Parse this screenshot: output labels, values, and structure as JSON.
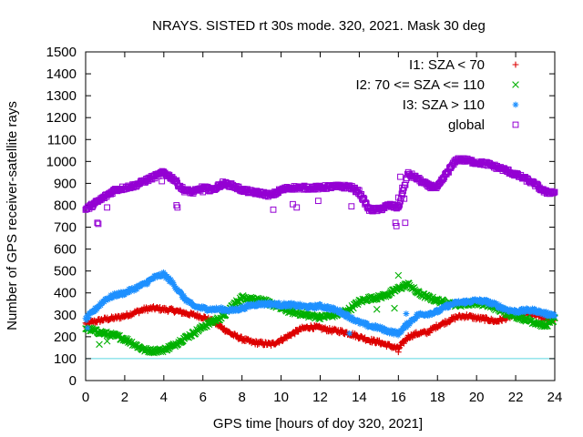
{
  "chart_data": {
    "type": "scatter",
    "title": "NRAYS. SISTED rt 30s mode. 320, 2021. Mask 30 deg",
    "xlabel": "GPS time [hours of doy 320, 2021]",
    "ylabel": "Number of GPS receiver-satellite rays",
    "xlim": [
      0,
      24
    ],
    "ylim": [
      0,
      1500
    ],
    "xticks": [
      0,
      2,
      4,
      6,
      8,
      10,
      12,
      14,
      16,
      18,
      20,
      22,
      24
    ],
    "yticks": [
      0,
      100,
      200,
      300,
      400,
      500,
      600,
      700,
      800,
      900,
      1000,
      1100,
      1200,
      1300,
      1400,
      1500
    ],
    "reference_line": {
      "y": 100,
      "color": "#5ad8e0"
    },
    "legend_position": "top-right",
    "series": [
      {
        "name": "I1: SZA < 70",
        "marker": "+",
        "color": "#dd0000",
        "x": [
          0,
          0.5,
          1,
          1.5,
          2,
          2.5,
          3,
          3.5,
          4,
          4.5,
          5,
          5.5,
          6,
          6.5,
          7,
          7.5,
          8,
          8.5,
          9,
          9.5,
          10,
          10.5,
          11,
          11.5,
          12,
          12.5,
          13,
          13.5,
          14,
          14.5,
          15,
          15.5,
          16,
          16.5,
          17,
          17.5,
          18,
          18.5,
          19,
          19.5,
          20,
          20.5,
          21,
          21.5,
          22,
          22.5,
          23,
          23.5,
          24
        ],
        "values": [
          260,
          270,
          280,
          285,
          295,
          310,
          325,
          330,
          325,
          320,
          310,
          300,
          290,
          270,
          240,
          210,
          190,
          175,
          170,
          165,
          185,
          210,
          235,
          245,
          240,
          230,
          225,
          215,
          200,
          185,
          175,
          160,
          145,
          200,
          215,
          220,
          250,
          270,
          290,
          295,
          285,
          280,
          270,
          285,
          300,
          305,
          300,
          285,
          270
        ]
      },
      {
        "name": "I2: 70 <= SZA <= 110",
        "marker": "x",
        "color": "#00b000",
        "x": [
          0,
          0.5,
          1,
          1.5,
          2,
          2.5,
          3,
          3.5,
          4,
          4.5,
          5,
          5.5,
          6,
          6.5,
          7,
          7.5,
          8,
          8.5,
          9,
          9.5,
          10,
          10.5,
          11,
          11.5,
          12,
          12.5,
          13,
          13.5,
          14,
          14.5,
          15,
          15.5,
          16,
          16.5,
          17,
          17.5,
          18,
          18.5,
          19,
          19.5,
          20,
          20.5,
          21,
          21.5,
          22,
          22.5,
          23,
          23.5,
          24
        ],
        "values": [
          240,
          225,
          215,
          205,
          190,
          165,
          140,
          135,
          140,
          160,
          190,
          215,
          245,
          270,
          290,
          340,
          380,
          375,
          365,
          350,
          330,
          315,
          305,
          295,
          290,
          295,
          305,
          325,
          360,
          375,
          380,
          395,
          420,
          440,
          400,
          380,
          365,
          355,
          345,
          350,
          355,
          345,
          330,
          310,
          295,
          280,
          265,
          250,
          280
        ]
      },
      {
        "name": "I3: SZA > 110",
        "marker": "*",
        "color": "#1e90ff",
        "x": [
          0,
          0.5,
          1,
          1.5,
          2,
          2.5,
          3,
          3.5,
          4,
          4.5,
          5,
          5.5,
          6,
          6.5,
          7,
          7.5,
          8,
          8.5,
          9,
          9.5,
          10,
          10.5,
          11,
          11.5,
          12,
          12.5,
          13,
          13.5,
          14,
          14.5,
          15,
          15.5,
          16,
          16.5,
          17,
          17.5,
          18,
          18.5,
          19,
          19.5,
          20,
          20.5,
          21,
          21.5,
          22,
          22.5,
          23,
          23.5,
          24
        ],
        "values": [
          280,
          325,
          370,
          390,
          400,
          420,
          440,
          470,
          485,
          440,
          380,
          340,
          330,
          325,
          325,
          320,
          330,
          345,
          350,
          350,
          345,
          345,
          340,
          335,
          340,
          330,
          315,
          290,
          265,
          250,
          240,
          225,
          215,
          260,
          300,
          305,
          315,
          340,
          355,
          360,
          365,
          360,
          345,
          325,
          315,
          320,
          320,
          305,
          300
        ]
      },
      {
        "name": "global",
        "marker": "square",
        "color": "#9400d3",
        "x": [
          0,
          0.5,
          1,
          1.5,
          2,
          2.5,
          3,
          3.5,
          4,
          4.5,
          5,
          5.5,
          6,
          6.5,
          7,
          7.5,
          8,
          8.5,
          9,
          9.5,
          10,
          10.5,
          11,
          11.5,
          12,
          12.5,
          13,
          13.5,
          14,
          14.5,
          15,
          15.5,
          16,
          16.5,
          17,
          17.5,
          18,
          18.5,
          19,
          19.5,
          20,
          20.5,
          21,
          21.5,
          22,
          22.5,
          23,
          23.5,
          24
        ],
        "values": [
          780,
          810,
          840,
          870,
          880,
          890,
          910,
          930,
          950,
          920,
          870,
          860,
          880,
          870,
          900,
          890,
          870,
          860,
          855,
          845,
          870,
          880,
          880,
          880,
          880,
          885,
          885,
          885,
          860,
          780,
          780,
          800,
          790,
          945,
          920,
          890,
          880,
          950,
          1010,
          1005,
          995,
          990,
          975,
          960,
          940,
          920,
          895,
          860,
          860
        ]
      }
    ],
    "outliers": {
      "global": [
        [
          0.6,
          720
        ],
        [
          0.65,
          715
        ],
        [
          1.1,
          790
        ],
        [
          3.9,
          910
        ],
        [
          4.65,
          800
        ],
        [
          4.7,
          790
        ],
        [
          6.0,
          860
        ],
        [
          9.6,
          780
        ],
        [
          10.6,
          805
        ],
        [
          10.8,
          790
        ],
        [
          11.9,
          820
        ],
        [
          13.6,
          795
        ],
        [
          15.2,
          790
        ],
        [
          15.85,
          720
        ],
        [
          15.9,
          705
        ],
        [
          16.0,
          835
        ],
        [
          16.1,
          930
        ],
        [
          16.2,
          880
        ],
        [
          16.3,
          830
        ],
        [
          16.35,
          720
        ]
      ],
      "I2: 70 <= SZA <= 110": [
        [
          0.7,
          165
        ],
        [
          1.1,
          180
        ],
        [
          14.9,
          325
        ],
        [
          15.8,
          330
        ],
        [
          16.0,
          480
        ],
        [
          16.4,
          440
        ]
      ],
      "I3: SZA > 110": [
        [
          0.1,
          240
        ],
        [
          13.5,
          215
        ],
        [
          16.4,
          305
        ]
      ],
      "I1: SZA < 70": [
        [
          0.05,
          240
        ],
        [
          16.0,
          130
        ]
      ]
    }
  }
}
